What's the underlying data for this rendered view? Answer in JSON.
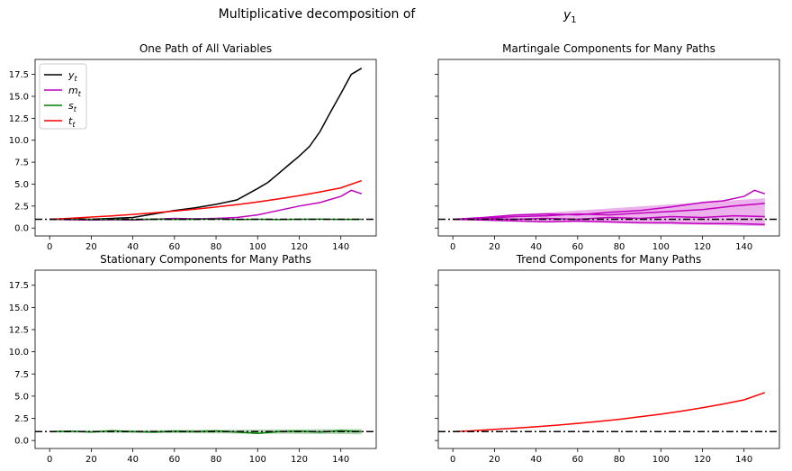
{
  "figure": {
    "suptitle": "Multiplicative decomposition of",
    "suptitle_var": "y",
    "suptitle_sub": "1"
  },
  "chart_data": [
    {
      "type": "line",
      "title": "One Path of All Variables",
      "xlabel": "",
      "ylabel": "",
      "xlim": [
        -7,
        157
      ],
      "ylim": [
        -0.9,
        19.2
      ],
      "xticks": [
        0,
        20,
        40,
        60,
        80,
        100,
        120,
        140
      ],
      "yticks": [
        "0.0",
        "2.5",
        "5.0",
        "7.5",
        "10.0",
        "12.5",
        "15.0",
        "17.5"
      ],
      "legend": {
        "placement": "top-left",
        "entries": [
          {
            "var": "y",
            "sub": "t",
            "color": "#000000"
          },
          {
            "var": "m",
            "sub": "t",
            "color": "#bf00bf"
          },
          {
            "var": "s",
            "sub": "t",
            "color": "#008000"
          },
          {
            "var": "t",
            "sub": "t",
            "color": "#ff0000"
          }
        ]
      },
      "reference_line": {
        "y": 1.0,
        "style": "dash-dot",
        "color": "#000000"
      },
      "series": [
        {
          "name": "y_t",
          "color": "#000000",
          "x": [
            0,
            10,
            20,
            30,
            40,
            50,
            60,
            70,
            80,
            90,
            100,
            105,
            110,
            115,
            120,
            125,
            130,
            135,
            140,
            145,
            150
          ],
          "values": [
            1.0,
            1.05,
            1.0,
            1.1,
            1.2,
            1.6,
            2.0,
            2.3,
            2.7,
            3.2,
            4.5,
            5.2,
            6.2,
            7.2,
            8.2,
            9.3,
            11.0,
            13.2,
            15.3,
            17.5,
            18.2
          ]
        },
        {
          "name": "m_t",
          "color": "#bf00bf",
          "x": [
            0,
            10,
            20,
            30,
            40,
            50,
            60,
            70,
            80,
            90,
            100,
            110,
            120,
            130,
            140,
            145,
            150
          ],
          "values": [
            1.0,
            0.95,
            0.9,
            0.95,
            0.9,
            1.0,
            1.1,
            1.05,
            1.1,
            1.2,
            1.5,
            2.0,
            2.5,
            2.9,
            3.6,
            4.3,
            3.9
          ]
        },
        {
          "name": "s_t",
          "color": "#008000",
          "x": [
            0,
            10,
            20,
            30,
            40,
            50,
            60,
            70,
            80,
            90,
            100,
            110,
            120,
            130,
            140,
            150
          ],
          "values": [
            1.0,
            1.02,
            0.98,
            1.0,
            0.97,
            1.01,
            0.99,
            1.0,
            1.02,
            0.98,
            1.0,
            0.97,
            1.0,
            1.01,
            0.99,
            1.0
          ]
        },
        {
          "name": "t_t",
          "color": "#ff0000",
          "x": [
            0,
            10,
            20,
            30,
            40,
            50,
            60,
            70,
            80,
            90,
            100,
            110,
            120,
            130,
            140,
            150
          ],
          "values": [
            1.0,
            1.11,
            1.25,
            1.39,
            1.55,
            1.73,
            1.93,
            2.15,
            2.39,
            2.67,
            2.97,
            3.31,
            3.69,
            4.11,
            4.58,
            5.4
          ]
        }
      ]
    },
    {
      "type": "area",
      "title": "Martingale Components for Many Paths",
      "xlim": [
        -7,
        157
      ],
      "ylim": [
        -0.9,
        19.2
      ],
      "xticks": [
        0,
        20,
        40,
        60,
        80,
        100,
        120,
        140
      ],
      "reference_line": {
        "y": 1.0,
        "style": "dash-dot",
        "color": "#000000"
      },
      "band": {
        "x": [
          0,
          150
        ],
        "lower": [
          0.95,
          0.2
        ],
        "upper": [
          1.05,
          3.4
        ],
        "color": "#bf00bf"
      },
      "series": [
        {
          "name": "",
          "color": "#bf00bf",
          "x": [
            0,
            15,
            30,
            45,
            60,
            75,
            90,
            105,
            120,
            130,
            140,
            145,
            150
          ],
          "values": [
            1.0,
            1.2,
            1.5,
            1.6,
            1.5,
            1.8,
            2.0,
            2.4,
            2.9,
            3.1,
            3.6,
            4.3,
            3.9
          ]
        },
        {
          "name": "",
          "color": "#bf00bf",
          "x": [
            0,
            15,
            30,
            45,
            60,
            75,
            90,
            105,
            120,
            135,
            150
          ],
          "values": [
            1.0,
            1.1,
            1.3,
            1.4,
            1.6,
            1.5,
            1.7,
            1.9,
            2.1,
            2.5,
            2.8
          ]
        },
        {
          "name": "",
          "color": "#bf00bf",
          "x": [
            0,
            15,
            30,
            45,
            60,
            75,
            90,
            105,
            120,
            135,
            150
          ],
          "values": [
            1.0,
            0.9,
            0.8,
            0.7,
            0.8,
            0.7,
            0.6,
            0.6,
            0.5,
            0.5,
            0.4
          ]
        },
        {
          "name": "",
          "color": "#bf00bf",
          "x": [
            0,
            15,
            30,
            45,
            60,
            75,
            90,
            105,
            120,
            135,
            150
          ],
          "values": [
            1.0,
            1.05,
            1.0,
            1.1,
            1.0,
            1.2,
            1.1,
            1.3,
            1.2,
            1.4,
            1.3
          ]
        }
      ]
    },
    {
      "type": "line",
      "title": "Stationary Components for Many Paths",
      "xlim": [
        -7,
        157
      ],
      "ylim": [
        -0.9,
        19.2
      ],
      "xticks": [
        0,
        20,
        40,
        60,
        80,
        100,
        120,
        140
      ],
      "yticks": [
        "0.0",
        "2.5",
        "5.0",
        "7.5",
        "10.0",
        "12.5",
        "15.0",
        "17.5"
      ],
      "reference_line": {
        "y": 1.0,
        "style": "dash-dot",
        "color": "#000000"
      },
      "band": {
        "x": [
          0,
          150
        ],
        "lower": [
          0.9,
          0.7
        ],
        "upper": [
          1.1,
          1.3
        ],
        "color": "#008000"
      },
      "series": [
        {
          "name": "",
          "color": "#008000",
          "x": [
            0,
            10,
            20,
            30,
            40,
            50,
            60,
            70,
            80,
            90,
            100,
            110,
            120,
            130,
            140,
            150
          ],
          "values": [
            1.0,
            1.05,
            0.95,
            1.1,
            1.0,
            0.95,
            1.05,
            1.0,
            1.08,
            0.95,
            0.8,
            1.0,
            1.05,
            0.95,
            1.1,
            1.0
          ]
        }
      ]
    },
    {
      "type": "line",
      "title": "Trend Components for Many Paths",
      "xlim": [
        -7,
        157
      ],
      "ylim": [
        -0.9,
        19.2
      ],
      "xticks": [
        0,
        20,
        40,
        60,
        80,
        100,
        120,
        140
      ],
      "reference_line": {
        "y": 1.0,
        "style": "dash-dot",
        "color": "#000000"
      },
      "series": [
        {
          "name": "",
          "color": "#ff0000",
          "x": [
            0,
            10,
            20,
            30,
            40,
            50,
            60,
            70,
            80,
            90,
            100,
            110,
            120,
            130,
            140,
            150
          ],
          "values": [
            1.0,
            1.11,
            1.25,
            1.39,
            1.55,
            1.73,
            1.93,
            2.15,
            2.39,
            2.67,
            2.97,
            3.31,
            3.69,
            4.11,
            4.58,
            5.4
          ]
        }
      ]
    }
  ]
}
